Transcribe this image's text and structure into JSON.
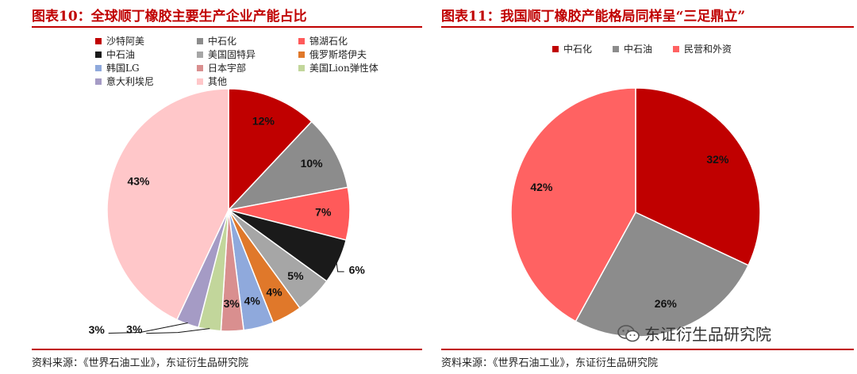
{
  "chart_data": [
    {
      "type": "pie",
      "title": "图表10：全球顺丁橡胶主要生产企业产能占比",
      "source": "资料来源：《世界石油工业》，东证衍生品研究院",
      "slices": [
        {
          "name": "沙特阿美",
          "value": 12,
          "label": "12%",
          "color": "#c00000"
        },
        {
          "name": "中石化",
          "value": 10,
          "label": "10%",
          "color": "#8c8c8c"
        },
        {
          "name": "锦湖石化",
          "value": 7,
          "label": "7%",
          "color": "#ff5a5a"
        },
        {
          "name": "中石油",
          "value": 6,
          "label": "6%",
          "color": "#1a1a1a"
        },
        {
          "name": "美国固特异",
          "value": 5,
          "label": "5%",
          "color": "#a6a6a6"
        },
        {
          "name": "俄罗斯塔伊夫",
          "value": 4,
          "label": "4%",
          "color": "#e0782a"
        },
        {
          "name": "韩国LG",
          "value": 4,
          "label": "4%",
          "color": "#8fa9dc"
        },
        {
          "name": "日本宇部",
          "value": 3,
          "label": "3%",
          "color": "#d98f8f"
        },
        {
          "name": "美国Lion弹性体",
          "value": 3,
          "label": "3%",
          "color": "#c2d69b"
        },
        {
          "name": "意大利埃尼",
          "value": 3,
          "label": "3%",
          "color": "#a59bc5"
        },
        {
          "name": "其他",
          "value": 43,
          "label": "43%",
          "color": "#ffc7c9"
        }
      ],
      "legend_position": "top-left"
    },
    {
      "type": "pie",
      "title": "图表11：我国顺丁橡胶产能格局同样呈“三足鼎立”",
      "source": "资料来源：《世界石油工业》，东证衍生品研究院",
      "slices": [
        {
          "name": "中石化",
          "value": 32,
          "label": "32%",
          "color": "#c00000"
        },
        {
          "name": "中石油",
          "value": 26,
          "label": "26%",
          "color": "#8c8c8c"
        },
        {
          "name": "民营和外资",
          "value": 42,
          "label": "42%",
          "color": "#ff6262"
        }
      ],
      "legend_position": "top"
    }
  ],
  "watermark": "东证衍生品研究院",
  "watermark_icon": "wechat-icon"
}
